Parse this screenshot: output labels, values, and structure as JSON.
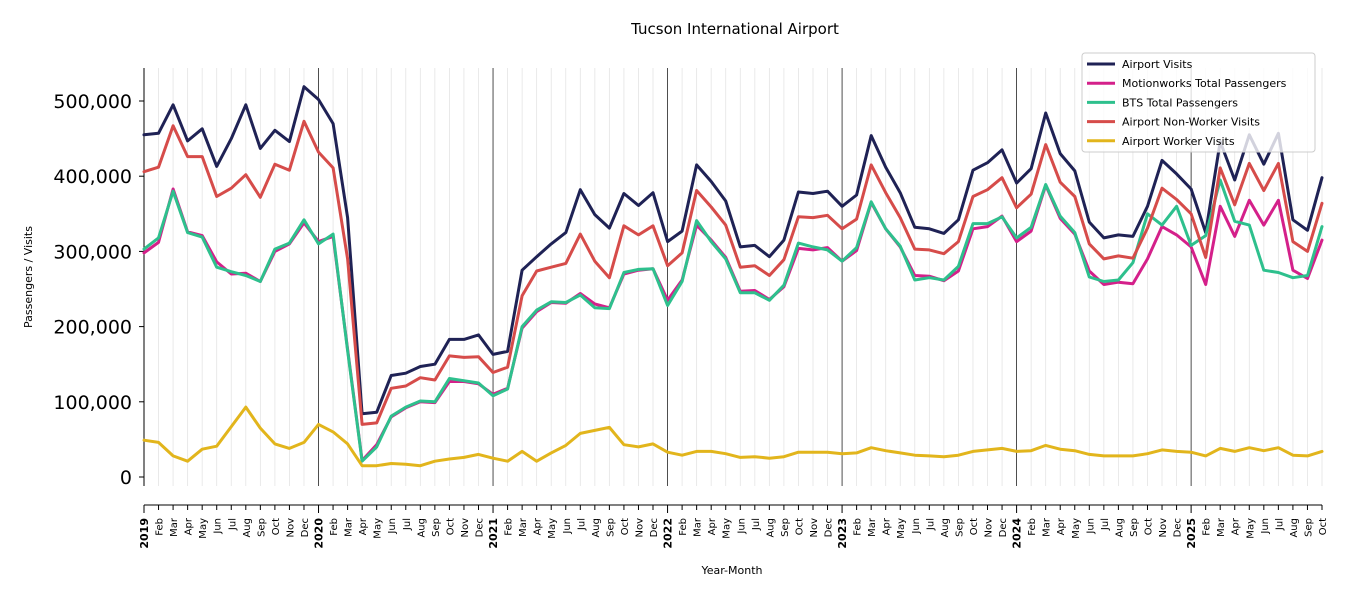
{
  "chart_data": {
    "type": "line",
    "title": "Tucson International Airport",
    "xlabel": "Year-Month",
    "ylabel": "Passengers / Visits",
    "ylim": [
      -10000,
      545000
    ],
    "yticks": [
      0,
      100000,
      200000,
      300000,
      400000,
      500000
    ],
    "ytick_labels": [
      "0",
      "100,000",
      "200,000",
      "300,000",
      "400,000",
      "500,000"
    ],
    "grid": "vertical minor gridlines each month; darker line at each January",
    "legend_position": "top-right",
    "x": [
      "2019-01",
      "2019-02",
      "2019-03",
      "2019-04",
      "2019-05",
      "2019-06",
      "2019-07",
      "2019-08",
      "2019-09",
      "2019-10",
      "2019-11",
      "2019-12",
      "2020-01",
      "2020-02",
      "2020-03",
      "2020-04",
      "2020-05",
      "2020-06",
      "2020-07",
      "2020-08",
      "2020-09",
      "2020-10",
      "2020-11",
      "2020-12",
      "2021-01",
      "2021-02",
      "2021-03",
      "2021-04",
      "2021-05",
      "2021-06",
      "2021-07",
      "2021-08",
      "2021-09",
      "2021-10",
      "2021-11",
      "2021-12",
      "2022-01",
      "2022-02",
      "2022-03",
      "2022-04",
      "2022-05",
      "2022-06",
      "2022-07",
      "2022-08",
      "2022-09",
      "2022-10",
      "2022-11",
      "2022-12",
      "2023-01",
      "2023-02",
      "2023-03",
      "2023-04",
      "2023-05",
      "2023-06",
      "2023-07",
      "2023-08",
      "2023-09",
      "2023-10",
      "2023-11",
      "2023-12",
      "2024-01",
      "2024-02",
      "2024-03",
      "2024-04",
      "2024-05",
      "2024-06",
      "2024-07",
      "2024-08",
      "2024-09",
      "2024-10",
      "2024-11",
      "2024-12",
      "2025-01",
      "2025-02",
      "2025-03",
      "2025-04",
      "2025-05",
      "2025-06",
      "2025-07",
      "2025-08",
      "2025-09",
      "2025-10"
    ],
    "tick_labels": [
      "2019",
      "Feb",
      "Mar",
      "Apr",
      "May",
      "Jun",
      "Jul",
      "Aug",
      "Sep",
      "Oct",
      "Nov",
      "Dec",
      "2020",
      "Feb",
      "Mar",
      "Apr",
      "May",
      "Jun",
      "Jul",
      "Aug",
      "Sep",
      "Oct",
      "Nov",
      "Dec",
      "2021",
      "Feb",
      "Mar",
      "Apr",
      "May",
      "Jun",
      "Jul",
      "Aug",
      "Sep",
      "Oct",
      "Nov",
      "Dec",
      "2022",
      "Feb",
      "Mar",
      "Apr",
      "May",
      "Jun",
      "Jul",
      "Aug",
      "Sep",
      "Oct",
      "Nov",
      "Dec",
      "2023",
      "Feb",
      "Mar",
      "Apr",
      "May",
      "Jun",
      "Jul",
      "Aug",
      "Sep",
      "Oct",
      "Nov",
      "Dec",
      "2024",
      "Feb",
      "Mar",
      "Apr",
      "May",
      "Jun",
      "Jul",
      "Aug",
      "Sep",
      "Oct",
      "Nov",
      "Dec",
      "2025",
      "Feb",
      "Mar",
      "Apr",
      "May",
      "Jun",
      "Jul",
      "Aug",
      "Sep",
      "Oct"
    ],
    "series": [
      {
        "name": "Airport Visits",
        "color": "#1f2255",
        "values": [
          455000,
          457000,
          495000,
          447000,
          463000,
          413000,
          450000,
          495000,
          437000,
          461000,
          446000,
          519000,
          502000,
          470000,
          345000,
          84000,
          86000,
          135000,
          138000,
          147000,
          150000,
          183000,
          183000,
          189000,
          163000,
          167000,
          275000,
          293000,
          310000,
          325000,
          382000,
          349000,
          331000,
          377000,
          361000,
          378000,
          313000,
          327000,
          415000,
          393000,
          367000,
          306000,
          308000,
          293000,
          315000,
          379000,
          377000,
          380000,
          360000,
          375000,
          454000,
          412000,
          378000,
          332000,
          330000,
          324000,
          342000,
          408000,
          418000,
          435000,
          391000,
          410000,
          484000,
          430000,
          407000,
          339000,
          318000,
          322000,
          320000,
          360000,
          421000,
          403000,
          383000,
          325000,
          446000,
          395000,
          455000,
          416000,
          457000,
          342000,
          328000,
          398000
        ]
      },
      {
        "name": "Motionworks Total Passengers",
        "color": "#d4208a",
        "values": [
          298000,
          312000,
          383000,
          326000,
          321000,
          286000,
          270000,
          271000,
          260000,
          300000,
          310000,
          338000,
          313000,
          320000,
          170000,
          22000,
          43000,
          80000,
          92000,
          100000,
          99000,
          127000,
          127000,
          124000,
          110000,
          118000,
          198000,
          220000,
          232000,
          231000,
          244000,
          230000,
          225000,
          270000,
          275000,
          277000,
          235000,
          262000,
          335000,
          315000,
          292000,
          247000,
          248000,
          236000,
          253000,
          304000,
          302000,
          305000,
          287000,
          301000,
          365000,
          330000,
          306000,
          268000,
          267000,
          261000,
          274000,
          330000,
          333000,
          347000,
          313000,
          327000,
          388000,
          344000,
          323000,
          274000,
          256000,
          259000,
          257000,
          290000,
          333000,
          322000,
          306000,
          256000,
          360000,
          320000,
          368000,
          335000,
          368000,
          275000,
          264000,
          315000
        ]
      },
      {
        "name": "BTS Total Passengers",
        "color": "#2ec08d",
        "values": [
          303000,
          318000,
          380000,
          325000,
          319000,
          279000,
          273000,
          268000,
          260000,
          303000,
          311000,
          342000,
          310000,
          323000,
          168000,
          21000,
          40000,
          81000,
          93000,
          101000,
          100000,
          131000,
          128000,
          125000,
          108000,
          117000,
          200000,
          222000,
          233000,
          232000,
          242000,
          225000,
          224000,
          272000,
          276000,
          277000,
          228000,
          260000,
          341000,
          313000,
          290000,
          245000,
          245000,
          235000,
          255000,
          311000,
          306000,
          302000,
          287000,
          305000,
          366000,
          330000,
          307000,
          262000,
          265000,
          262000,
          280000,
          337000,
          337000,
          346000,
          318000,
          332000,
          389000,
          347000,
          325000,
          266000,
          260000,
          262000,
          285000,
          350000,
          335000,
          360000,
          308000,
          321000,
          395000,
          340000,
          335000,
          275000,
          272000,
          265000,
          268000,
          333000
        ]
      },
      {
        "name": "Airport Non-Worker Visits",
        "color": "#d64c4a",
        "values": [
          406000,
          412000,
          467000,
          426000,
          426000,
          373000,
          384000,
          402000,
          372000,
          416000,
          408000,
          473000,
          432000,
          411000,
          290000,
          70000,
          72000,
          118000,
          121000,
          132000,
          129000,
          161000,
          159000,
          160000,
          139000,
          146000,
          241000,
          274000,
          279000,
          284000,
          323000,
          287000,
          265000,
          334000,
          322000,
          334000,
          281000,
          298000,
          381000,
          359000,
          335000,
          279000,
          281000,
          268000,
          289000,
          346000,
          345000,
          348000,
          330000,
          343000,
          415000,
          378000,
          345000,
          303000,
          302000,
          297000,
          313000,
          373000,
          382000,
          398000,
          358000,
          376000,
          442000,
          392000,
          373000,
          310000,
          290000,
          294000,
          291000,
          331000,
          384000,
          369000,
          350000,
          292000,
          411000,
          362000,
          417000,
          381000,
          417000,
          313000,
          300000,
          364000
        ]
      },
      {
        "name": "Airport Worker Visits",
        "color": "#e2b51c",
        "values": [
          49000,
          46000,
          28000,
          21000,
          37000,
          41000,
          67000,
          93000,
          65000,
          44000,
          38000,
          46000,
          70000,
          60000,
          44000,
          15000,
          15000,
          18000,
          17000,
          15000,
          21000,
          24000,
          26000,
          30000,
          25000,
          21000,
          34000,
          21000,
          32000,
          42000,
          58000,
          62000,
          66000,
          43000,
          40000,
          44000,
          33000,
          29000,
          34000,
          34000,
          31000,
          26000,
          27000,
          25000,
          27000,
          33000,
          33000,
          33000,
          31000,
          32000,
          39000,
          35000,
          32000,
          29000,
          28000,
          27000,
          29000,
          34000,
          36000,
          38000,
          34000,
          35000,
          42000,
          37000,
          35000,
          30000,
          28000,
          28000,
          28000,
          31000,
          36000,
          34000,
          33000,
          28000,
          38000,
          34000,
          39000,
          35000,
          39000,
          29000,
          28000,
          34000
        ]
      }
    ]
  }
}
